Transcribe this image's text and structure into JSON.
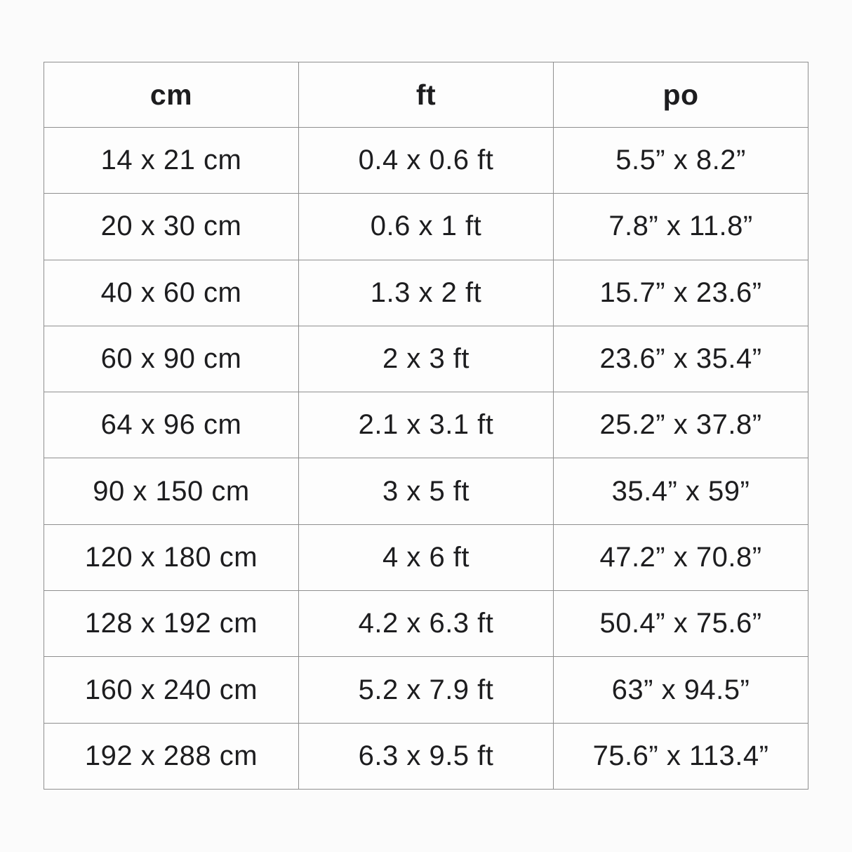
{
  "colors": {
    "background": "#fbfbfb",
    "cell_background": "#fdfdfd",
    "border": "#8f8f8f",
    "text": "#1d1d1f"
  },
  "chart_data": {
    "type": "table",
    "columns": [
      "cm",
      "ft",
      "po"
    ],
    "rows": [
      [
        "14 x 21 cm",
        "0.4 x 0.6 ft",
        "5.5” x 8.2”"
      ],
      [
        "20 x 30 cm",
        "0.6 x 1 ft",
        "7.8” x 11.8”"
      ],
      [
        "40 x 60 cm",
        "1.3 x 2 ft",
        "15.7” x 23.6”"
      ],
      [
        "60 x 90 cm",
        "2 x 3 ft",
        "23.6” x 35.4”"
      ],
      [
        "64 x 96 cm",
        "2.1 x 3.1 ft",
        "25.2” x 37.8”"
      ],
      [
        "90 x 150 cm",
        "3 x 5 ft",
        "35.4” x 59”"
      ],
      [
        "120 x 180 cm",
        "4 x 6 ft",
        "47.2” x 70.8”"
      ],
      [
        "128 x 192 cm",
        "4.2 x 6.3 ft",
        "50.4” x 75.6”"
      ],
      [
        "160 x 240 cm",
        "5.2 x 7.9 ft",
        "63” x 94.5”"
      ],
      [
        "192 x 288 cm",
        "6.3 x 9.5 ft",
        "75.6” x 113.4”"
      ]
    ],
    "title": "",
    "legend": "none",
    "grid": "full-borders"
  }
}
